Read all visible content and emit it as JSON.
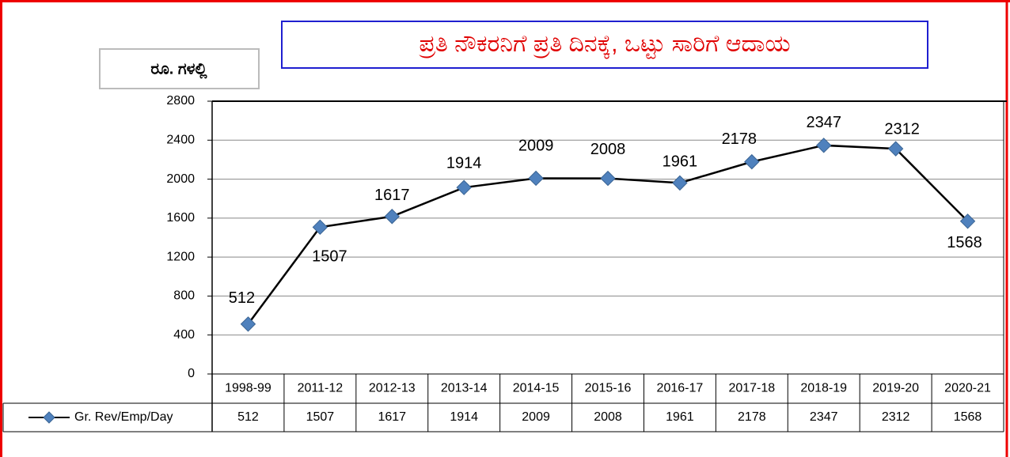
{
  "chart_data": {
    "type": "line",
    "title": "ಪ್ರತಿ ನೌಕರನಿಗೆ ಪ್ರತಿ ದಿನಕ್ಕೆ, ಒಟ್ಟು ಸಾರಿಗೆ ಆದಾಯ",
    "y_label": "ರೂ. ಗಳಲ್ಲಿ",
    "categories": [
      "1998-99",
      "2011-12",
      "2012-13",
      "2013-14",
      "2014-15",
      "2015-16",
      "2016-17",
      "2017-18",
      "2018-19",
      "2019-20",
      "2020-21"
    ],
    "series": [
      {
        "name": "Gr. Rev/Emp/Day",
        "color": "#4f81bd",
        "values": [
          512,
          1507,
          1617,
          1914,
          2009,
          2008,
          1961,
          2178,
          2347,
          2312,
          1568
        ]
      }
    ],
    "ylim": [
      0,
      2800
    ],
    "yticks": [
      0,
      400,
      800,
      1200,
      1600,
      2000,
      2400,
      2800
    ],
    "grid": true,
    "data_table": true
  }
}
